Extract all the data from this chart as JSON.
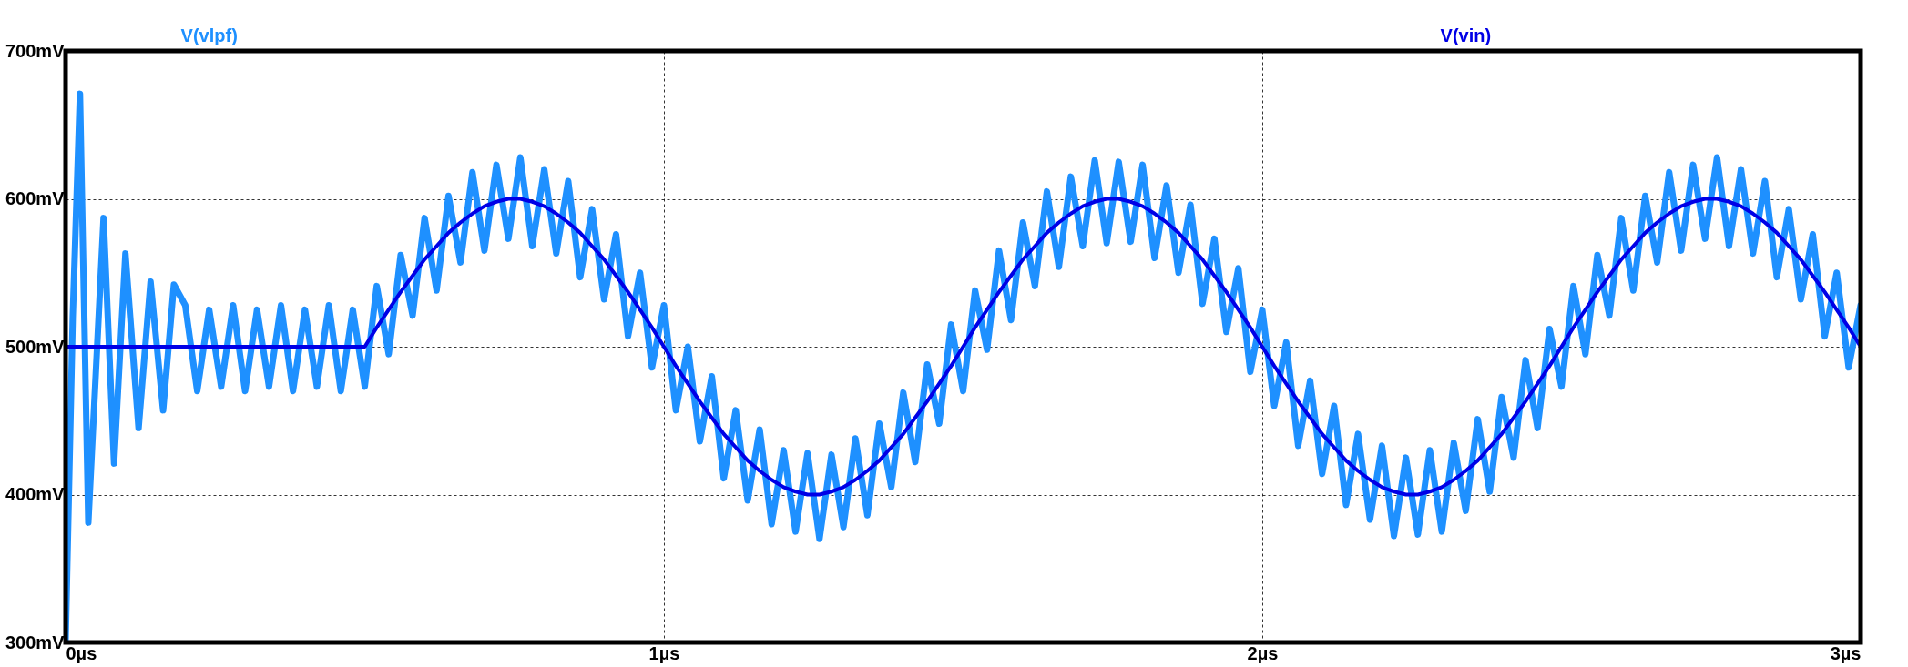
{
  "chart_data": {
    "type": "line",
    "xlim": [
      0,
      3
    ],
    "ylim": [
      300,
      700
    ],
    "xticks": [
      {
        "value": 0,
        "label": "0µs"
      },
      {
        "value": 1,
        "label": "1µs"
      },
      {
        "value": 2,
        "label": "2µs"
      },
      {
        "value": 3,
        "label": "3µs"
      }
    ],
    "yticks": [
      {
        "value": 300,
        "label": "300mV"
      },
      {
        "value": 400,
        "label": "400mV"
      },
      {
        "value": 500,
        "label": "500mV"
      },
      {
        "value": 600,
        "label": "600mV"
      },
      {
        "value": 700,
        "label": "700mV"
      }
    ],
    "grid": true,
    "legend": "top",
    "marker": "none",
    "line_style": "solid",
    "series": [
      {
        "name": "V(vlpf)",
        "color": "#1e90ff",
        "x": [
          0,
          0.012,
          0.024,
          0.038,
          0.0635,
          0.081,
          0.1,
          0.122,
          0.142,
          0.163,
          0.181,
          0.2,
          0.22,
          0.24,
          0.26,
          0.28,
          0.3,
          0.32,
          0.34,
          0.36,
          0.38,
          0.4,
          0.42,
          0.44,
          0.46,
          0.48,
          0.5,
          0.52,
          0.54,
          0.56,
          0.58,
          0.6,
          0.62,
          0.64,
          0.66,
          0.68,
          0.7,
          0.72,
          0.74,
          0.76,
          0.78,
          0.8,
          0.82,
          0.84,
          0.86,
          0.88,
          0.9,
          0.92,
          0.94,
          0.96,
          0.98,
          1.0,
          1.02,
          1.04,
          1.06,
          1.08,
          1.1,
          1.12,
          1.14,
          1.16,
          1.18,
          1.2,
          1.22,
          1.24,
          1.26,
          1.28,
          1.3,
          1.32,
          1.34,
          1.36,
          1.38,
          1.4,
          1.42,
          1.44,
          1.46,
          1.48,
          1.5,
          1.52,
          1.54,
          1.56,
          1.58,
          1.6,
          1.62,
          1.64,
          1.66,
          1.68,
          1.7,
          1.72,
          1.74,
          1.76,
          1.78,
          1.8,
          1.82,
          1.84,
          1.86,
          1.88,
          1.9,
          1.92,
          1.94,
          1.96,
          1.98,
          2.0,
          2.02,
          2.04,
          2.06,
          2.08,
          2.1,
          2.12,
          2.14,
          2.16,
          2.18,
          2.2,
          2.22,
          2.24,
          2.26,
          2.28,
          2.3,
          2.32,
          2.34,
          2.36,
          2.38,
          2.4,
          2.42,
          2.44,
          2.46,
          2.48,
          2.5,
          2.52,
          2.54,
          2.56,
          2.58,
          2.6,
          2.62,
          2.64,
          2.66,
          2.68,
          2.7,
          2.72,
          2.74,
          2.76,
          2.78,
          2.8,
          2.82,
          2.84,
          2.86,
          2.88,
          2.9,
          2.92,
          2.94,
          2.96,
          2.98,
          3.0
        ],
        "values": [
          300,
          520,
          671,
          381,
          587,
          421,
          563,
          445,
          544,
          457,
          542,
          528,
          470,
          525,
          473,
          528,
          470,
          525,
          473,
          528,
          470,
          525,
          473,
          528,
          470,
          525,
          473,
          541,
          495,
          562,
          521,
          587,
          538,
          602,
          557,
          618,
          565,
          623,
          573,
          628,
          568,
          620,
          563,
          612,
          547,
          593,
          532,
          576,
          507,
          550,
          486,
          528,
          457,
          500,
          436,
          480,
          411,
          457,
          396,
          444,
          380,
          430,
          375,
          428,
          370,
          427,
          378,
          438,
          386,
          448,
          405,
          469,
          422,
          488,
          448,
          515,
          470,
          538,
          498,
          565,
          518,
          584,
          541,
          605,
          554,
          615,
          568,
          626,
          570,
          625,
          571,
          623,
          560,
          609,
          550,
          596,
          529,
          573,
          510,
          553,
          483,
          525,
          460,
          503,
          433,
          477,
          414,
          460,
          393,
          441,
          383,
          433,
          372,
          425,
          373,
          430,
          375,
          435,
          389,
          451,
          402,
          466,
          425,
          491,
          445,
          512,
          473,
          541,
          495,
          562,
          521,
          587,
          538,
          602,
          557,
          618,
          565,
          623,
          573,
          628,
          568,
          620,
          563,
          612,
          547,
          593,
          532,
          576,
          507,
          550,
          486,
          528
        ]
      },
      {
        "name": "V(vin)",
        "color": "#0000e6",
        "x": [
          0,
          0.5,
          0.52,
          0.54,
          0.56,
          0.58,
          0.6,
          0.62,
          0.64,
          0.66,
          0.68,
          0.7,
          0.72,
          0.74,
          0.76,
          0.78,
          0.8,
          0.82,
          0.84,
          0.86,
          0.88,
          0.9,
          0.92,
          0.94,
          0.96,
          0.98,
          1.0,
          1.02,
          1.04,
          1.06,
          1.08,
          1.1,
          1.12,
          1.14,
          1.16,
          1.18,
          1.2,
          1.22,
          1.24,
          1.26,
          1.28,
          1.3,
          1.32,
          1.34,
          1.36,
          1.38,
          1.4,
          1.42,
          1.44,
          1.46,
          1.48,
          1.5,
          1.52,
          1.54,
          1.56,
          1.58,
          1.6,
          1.62,
          1.64,
          1.66,
          1.68,
          1.7,
          1.72,
          1.74,
          1.76,
          1.78,
          1.8,
          1.82,
          1.84,
          1.86,
          1.88,
          1.9,
          1.92,
          1.94,
          1.96,
          1.98,
          2.0,
          2.02,
          2.04,
          2.06,
          2.08,
          2.1,
          2.12,
          2.14,
          2.16,
          2.18,
          2.2,
          2.22,
          2.24,
          2.26,
          2.28,
          2.3,
          2.32,
          2.34,
          2.36,
          2.38,
          2.4,
          2.42,
          2.44,
          2.46,
          2.48,
          2.5,
          2.52,
          2.54,
          2.56,
          2.58,
          2.6,
          2.62,
          2.64,
          2.66,
          2.68,
          2.7,
          2.72,
          2.74,
          2.76,
          2.78,
          2.8,
          2.82,
          2.84,
          2.86,
          2.88,
          2.9,
          2.92,
          2.94,
          2.96,
          2.98,
          3.0
        ],
        "values": [
          500,
          500,
          513,
          525,
          537,
          548,
          559,
          568,
          577,
          584,
          590,
          595,
          598,
          600,
          600,
          598,
          595,
          590,
          584,
          577,
          568,
          559,
          548,
          537,
          525,
          513,
          500,
          487,
          475,
          463,
          452,
          441,
          432,
          423,
          416,
          410,
          405,
          402,
          400,
          400,
          402,
          405,
          410,
          416,
          423,
          432,
          441,
          452,
          463,
          475,
          487,
          500,
          513,
          525,
          537,
          548,
          559,
          568,
          577,
          584,
          590,
          595,
          598,
          600,
          600,
          598,
          595,
          590,
          584,
          577,
          568,
          559,
          548,
          537,
          525,
          513,
          500,
          487,
          475,
          463,
          452,
          441,
          432,
          423,
          416,
          410,
          405,
          402,
          400,
          400,
          402,
          405,
          410,
          416,
          423,
          432,
          441,
          452,
          463,
          475,
          487,
          500,
          513,
          525,
          537,
          548,
          559,
          568,
          577,
          584,
          590,
          595,
          598,
          600,
          600,
          598,
          595,
          590,
          584,
          577,
          568,
          559,
          548,
          537,
          525,
          513,
          500
        ]
      }
    ]
  }
}
